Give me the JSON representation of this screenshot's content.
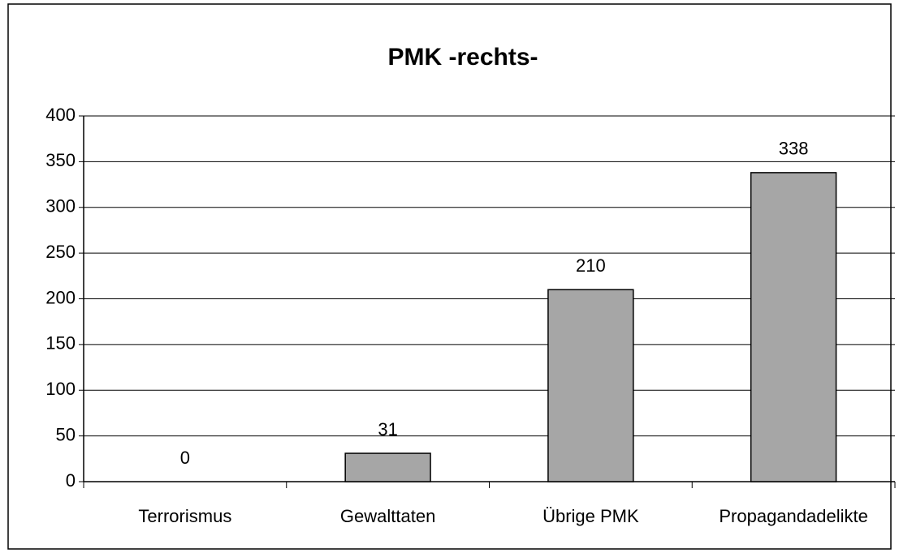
{
  "chart_data": {
    "type": "bar",
    "title": "PMK -rechts-",
    "categories": [
      "Terrorismus",
      "Gewalttaten",
      "Übrige PMK",
      "Propagandadelikte"
    ],
    "values": [
      0,
      31,
      210,
      338
    ],
    "color": "#a6a6a6",
    "ylim": [
      0,
      400
    ],
    "yticks": [
      0,
      50,
      100,
      150,
      200,
      250,
      300,
      350,
      400
    ],
    "grid": true
  }
}
